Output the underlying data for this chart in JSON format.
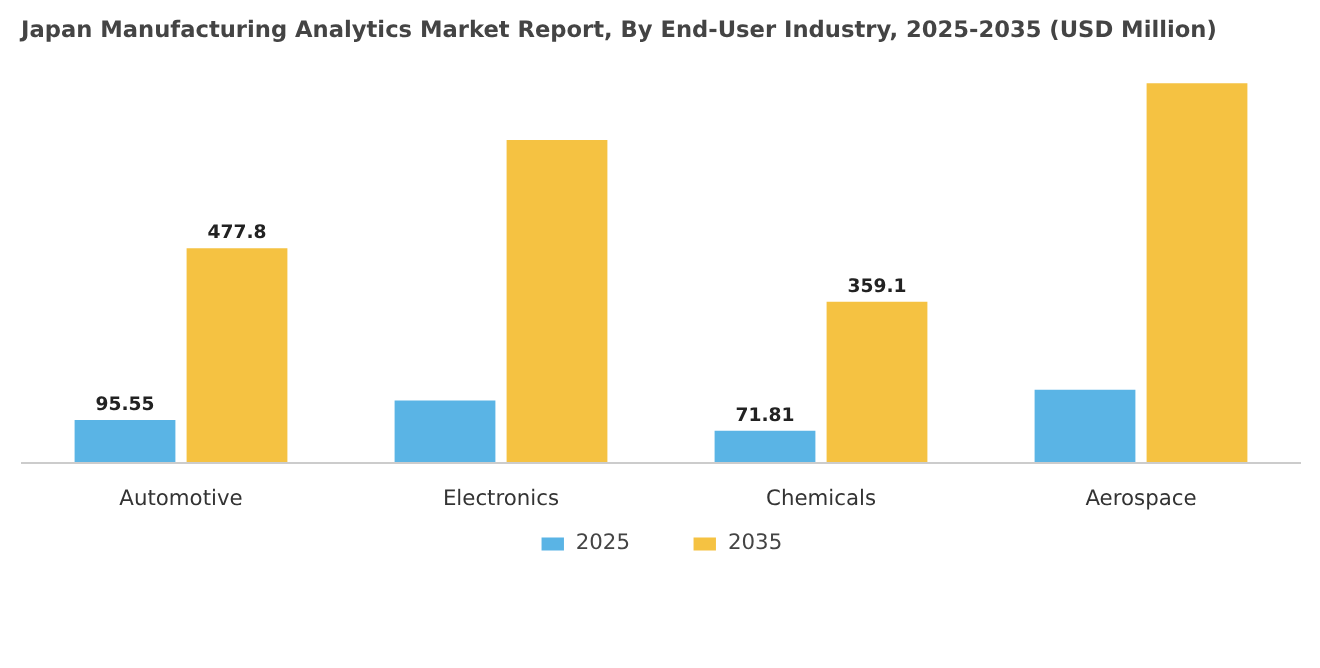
{
  "chart_data": {
    "type": "bar",
    "title": "Japan Manufacturing Analytics Market Report, By End-User Industry, 2025-2035 (USD Million)",
    "categories": [
      "Automotive",
      "Electronics",
      "Chemicals",
      "Aerospace"
    ],
    "series": [
      {
        "name": "2025",
        "color": "#5ab4e5",
        "values": [
          95.55,
          139,
          71.81,
          163
        ],
        "value_labels": [
          "95.55",
          null,
          "71.81",
          null
        ]
      },
      {
        "name": "2035",
        "color": "#f5c242",
        "values": [
          477.8,
          719,
          359.1,
          845
        ],
        "value_labels": [
          "477.8",
          null,
          "359.1",
          null
        ]
      }
    ],
    "legend": "bottom"
  }
}
